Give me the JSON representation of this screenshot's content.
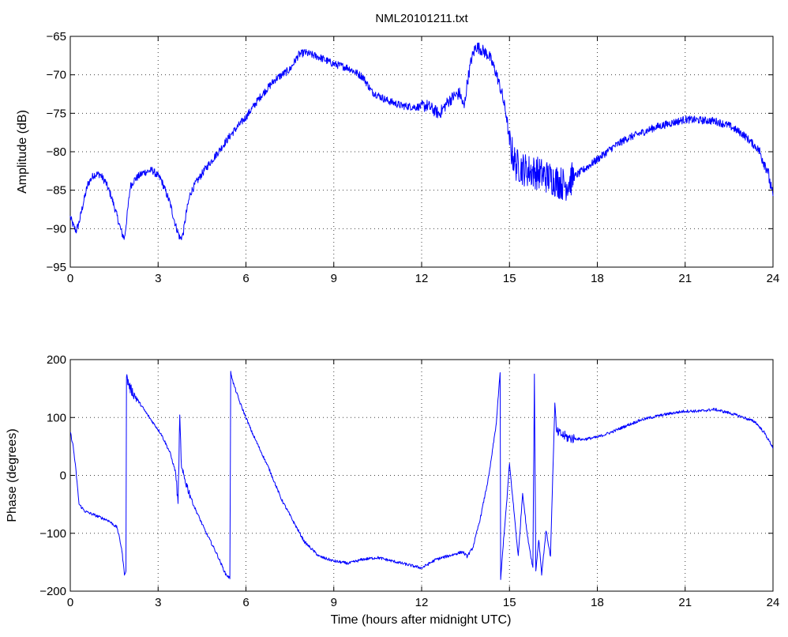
{
  "chart_data": [
    {
      "type": "line",
      "title": "NML20101211.txt",
      "xlabel": "",
      "ylabel": "Amplitude (dB)",
      "xlim": [
        0,
        24
      ],
      "ylim": [
        -95,
        -65
      ],
      "xticks": [
        0,
        3,
        6,
        9,
        12,
        15,
        18,
        21,
        24
      ],
      "yticks": [
        -95,
        -90,
        -85,
        -80,
        -75,
        -70,
        -65
      ],
      "grid": true,
      "color": "#0000ff",
      "series": [
        {
          "x": [
            0,
            0.1,
            0.2,
            0.3,
            0.45,
            0.6,
            0.8,
            1.0,
            1.2,
            1.4,
            1.6,
            1.75,
            1.85,
            1.95,
            2.05,
            2.2,
            2.5,
            2.8,
            3.1,
            3.4,
            3.6,
            3.75,
            3.85,
            3.95,
            4.1,
            4.3,
            4.6,
            5.0,
            5.5,
            6.0,
            6.5,
            7.0,
            7.5,
            7.8,
            8.0,
            8.5,
            9.0,
            9.5,
            10.0,
            10.3,
            10.8,
            11.3,
            11.8,
            12.2,
            12.6,
            12.9,
            13.1,
            13.3,
            13.45,
            13.55,
            13.7,
            13.85,
            14.0,
            14.3,
            14.55,
            14.75,
            14.9,
            15.0,
            15.2,
            15.5,
            16.0,
            16.5,
            16.9,
            17.3,
            18.0,
            18.5,
            19.0,
            20.0,
            21.0,
            22.0,
            22.5,
            23.0,
            23.5,
            23.8,
            24.0
          ],
          "y": [
            -88.5,
            -89.6,
            -90.3,
            -89.2,
            -86.6,
            -84.2,
            -83.0,
            -82.9,
            -83.9,
            -85.8,
            -88.4,
            -90.5,
            -91.3,
            -88.0,
            -84.5,
            -83.6,
            -82.7,
            -82.4,
            -83.6,
            -86.6,
            -89.6,
            -91.3,
            -90.8,
            -88.2,
            -85.4,
            -84.0,
            -82.3,
            -80.3,
            -77.7,
            -75.5,
            -72.8,
            -70.6,
            -69.3,
            -67.4,
            -67.1,
            -67.7,
            -68.6,
            -69.1,
            -70.3,
            -72.2,
            -73.3,
            -74.0,
            -74.2,
            -74.0,
            -75.1,
            -73.5,
            -72.8,
            -72.4,
            -74.3,
            -71.2,
            -68.0,
            -66.3,
            -66.6,
            -67.5,
            -69.8,
            -72.6,
            -75.4,
            -78.9,
            -81.6,
            -82.3,
            -82.8,
            -83.6,
            -84.3,
            -83.0,
            -81.0,
            -79.5,
            -78.3,
            -76.8,
            -75.8,
            -76.0,
            -76.6,
            -77.8,
            -79.7,
            -82.2,
            -86.0
          ]
        }
      ]
    },
    {
      "type": "line",
      "title": "",
      "xlabel": "Time (hours after midnight UTC)",
      "ylabel": "Phase (degrees)",
      "xlim": [
        0,
        24
      ],
      "ylim": [
        -200,
        200
      ],
      "xticks": [
        0,
        3,
        6,
        9,
        12,
        15,
        18,
        21,
        24
      ],
      "yticks": [
        -200,
        -100,
        0,
        100,
        200
      ],
      "grid": true,
      "color": "#0000ff",
      "series": [
        {
          "x": [
            0,
            0.1,
            0.2,
            0.3,
            0.5,
            0.9,
            1.3,
            1.6,
            1.75,
            1.85,
            1.9,
            1.92,
            2.05,
            2.3,
            2.7,
            3.1,
            3.4,
            3.6,
            3.68,
            3.74,
            3.8,
            3.9,
            4.2,
            4.6,
            5.0,
            5.3,
            5.45,
            5.48,
            5.55,
            5.8,
            6.2,
            6.8,
            7.2,
            7.6,
            8.0,
            8.5,
            9.0,
            9.5,
            10.0,
            10.5,
            11.0,
            11.5,
            12.0,
            12.5,
            13.0,
            13.4,
            13.55,
            13.75,
            14.0,
            14.3,
            14.55,
            14.68,
            14.7,
            14.8,
            14.9,
            15.0,
            15.15,
            15.3,
            15.45,
            15.6,
            15.8,
            15.85,
            15.9,
            16.0,
            16.1,
            16.25,
            16.4,
            16.55,
            16.6,
            16.8,
            17.0,
            17.5,
            18.0,
            18.5,
            19.0,
            19.5,
            20.0,
            20.5,
            21.0,
            21.5,
            22.0,
            22.5,
            23.0,
            23.4,
            23.7,
            24.0
          ],
          "y": [
            75,
            50,
            5,
            -50,
            -62,
            -70,
            -78,
            -90,
            -125,
            -170,
            -165,
            170,
            150,
            130,
            100,
            72,
            40,
            5,
            -50,
            100,
            10,
            -5,
            -50,
            -95,
            -135,
            -170,
            -178,
            180,
            162,
            125,
            75,
            10,
            -40,
            -78,
            -115,
            -140,
            -148,
            -152,
            -145,
            -142,
            -148,
            -154,
            -160,
            -145,
            -138,
            -132,
            -140,
            -125,
            -75,
            0,
            90,
            178,
            -180,
            -110,
            -50,
            20,
            -60,
            -140,
            -30,
            -100,
            -160,
            175,
            -165,
            -110,
            -170,
            -95,
            -140,
            125,
            75,
            70,
            65,
            62,
            66,
            75,
            86,
            96,
            102,
            107,
            111,
            111,
            114,
            108,
            100,
            92,
            74,
            48
          ]
        }
      ]
    }
  ]
}
